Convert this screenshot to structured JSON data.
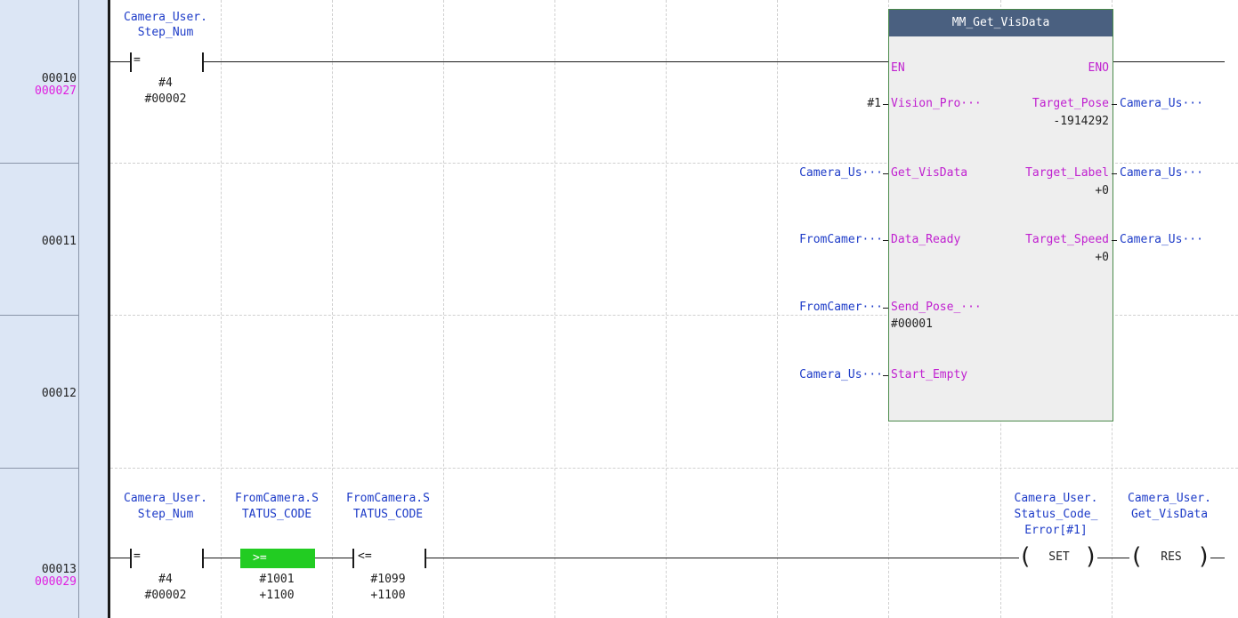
{
  "rows": [
    {
      "number": "00010",
      "step": "000027"
    },
    {
      "number": "00011",
      "step": ""
    },
    {
      "number": "00012",
      "step": ""
    },
    {
      "number": "00013",
      "step": "000029"
    }
  ],
  "rung_10": {
    "contact": {
      "variable_line1": "Camera_User.",
      "variable_line2": "Step_Num",
      "op": "=",
      "value1": "#4",
      "value2": "#00002"
    }
  },
  "function_block": {
    "title": "MM_Get_VisData",
    "inputs": [
      {
        "pin": "EN",
        "arg": "",
        "value": ""
      },
      {
        "pin": "Vision_Pro···",
        "arg": "#1",
        "value": ""
      },
      {
        "pin": "Get_VisData",
        "arg": "Camera_Us···",
        "value": ""
      },
      {
        "pin": "Data_Ready",
        "arg": "FromCamer···",
        "value": ""
      },
      {
        "pin": "Send_Pose_···",
        "arg": "FromCamer···",
        "value": "#00001"
      },
      {
        "pin": "Start_Empty",
        "arg": "Camera_Us···",
        "value": ""
      }
    ],
    "outputs": [
      {
        "pin": "ENO",
        "arg": "",
        "value": ""
      },
      {
        "pin": "Target_Pose",
        "arg": "Camera_Us···",
        "value": "-1914292"
      },
      {
        "pin": "Target_Label",
        "arg": "Camera_Us···",
        "value": "+0"
      },
      {
        "pin": "Target_Speed",
        "arg": "Camera_Us···",
        "value": "+0"
      }
    ]
  },
  "rung_13": {
    "contacts": [
      {
        "var1": "Camera_User.",
        "var2": "Step_Num",
        "op": "=",
        "v1": "#4",
        "v2": "#00002",
        "active": false
      },
      {
        "var1": "FromCamera.S",
        "var2": "TATUS_CODE",
        "op": ">=",
        "v1": "#1001",
        "v2": "+1100",
        "active": true
      },
      {
        "var1": "FromCamera.S",
        "var2": "TATUS_CODE",
        "op": "<=",
        "v1": "#1099",
        "v2": "+1100",
        "active": false
      }
    ],
    "coils": [
      {
        "var1": "Camera_User.",
        "var2": "Status_Code_",
        "var3": "Error[#1]",
        "label": "SET"
      },
      {
        "var1": "Camera_User.",
        "var2": "Get_VisData",
        "var3": "",
        "label": "RES"
      }
    ]
  },
  "colors": {
    "panel": "#dce6f5",
    "fb_title": "#4a6080",
    "active_contact": "#22cc22",
    "label_blue": "#1e3cc8",
    "pin_magenta": "#c020d0",
    "step_magenta": "#e020e0"
  }
}
